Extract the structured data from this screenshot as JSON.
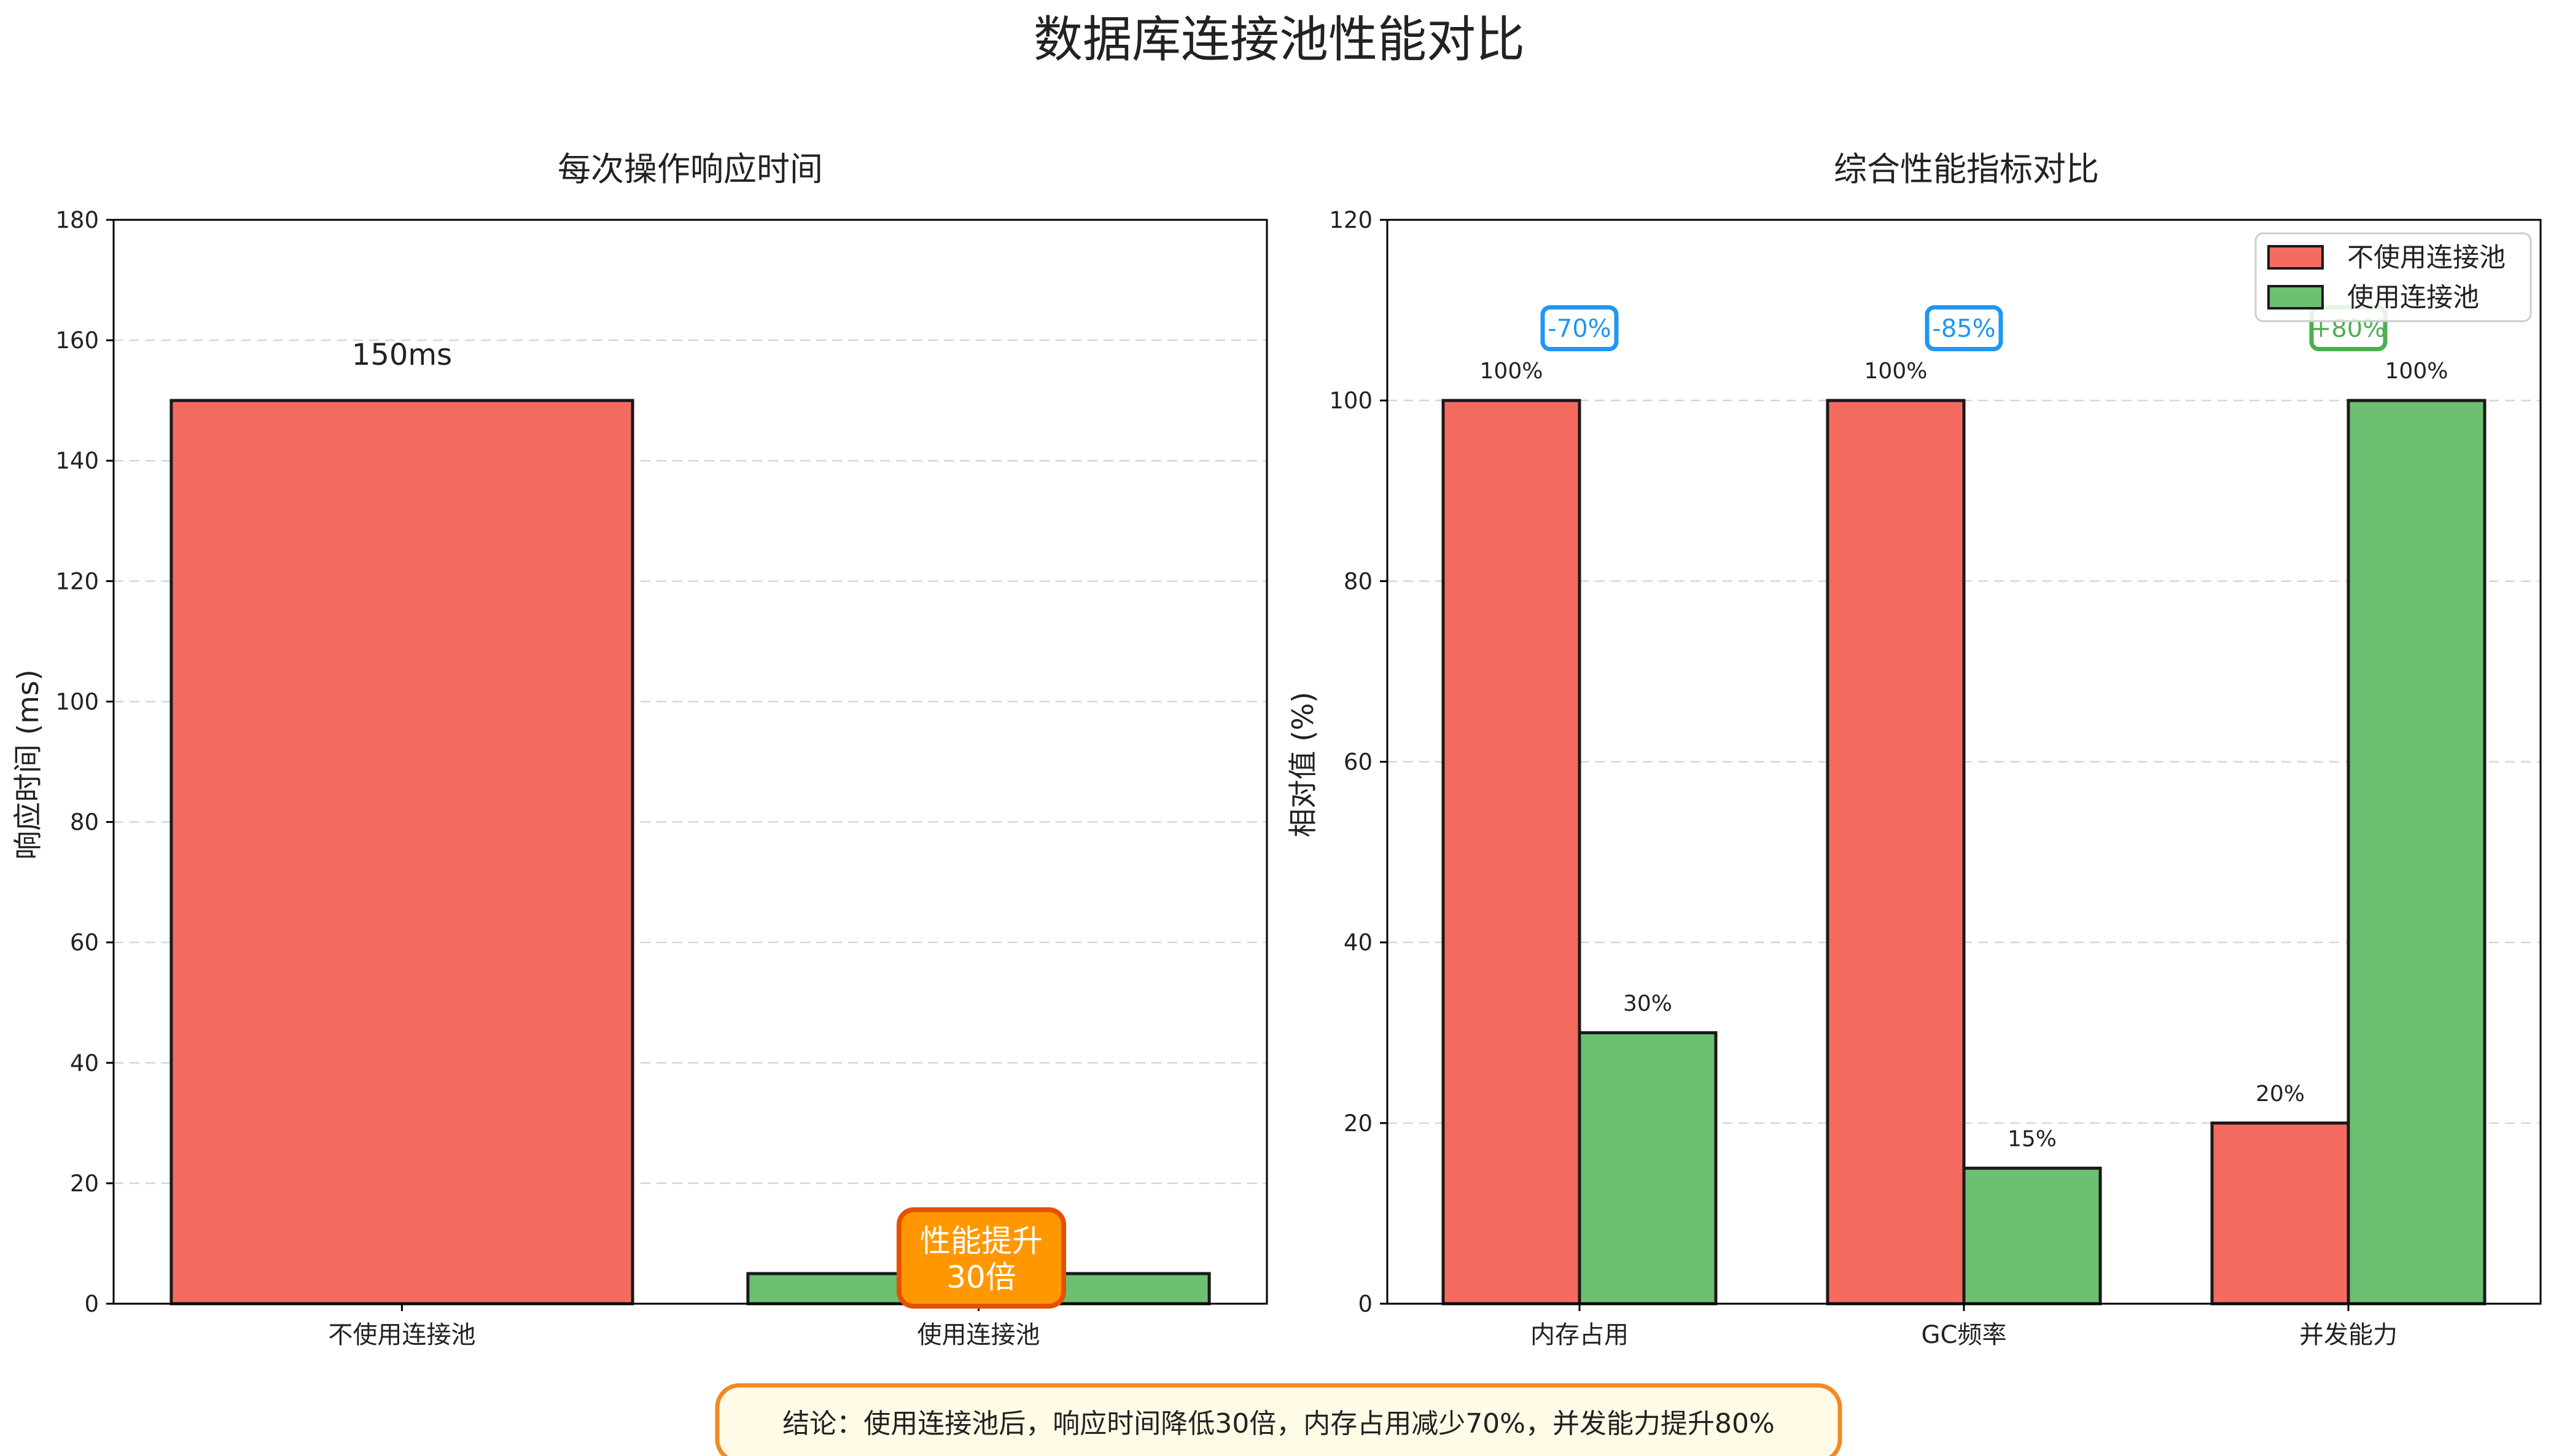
{
  "title": "数据库连接池性能对比",
  "colors": {
    "without_pool": "#f46b5f",
    "with_pool": "#6dbf71",
    "badge_blue": "#2196f3",
    "badge_green": "#4caf50",
    "highlight_fill": "#ff9800",
    "highlight_border": "#e65100",
    "conclusion_border": "#f08a24",
    "conclusion_fill": "#fffbe6"
  },
  "chart_data": [
    {
      "type": "bar",
      "title": "每次操作响应时间",
      "xlabel": "",
      "ylabel": "响应时间 (ms)",
      "categories": [
        "不使用连接池",
        "使用连接池"
      ],
      "values": [
        150,
        5
      ],
      "value_labels": [
        "150ms",
        ""
      ],
      "ylim": [
        0,
        180
      ],
      "yticks": [
        0,
        20,
        40,
        60,
        80,
        100,
        120,
        140,
        160,
        180
      ],
      "grid": true,
      "annotation": {
        "line1": "性能提升",
        "line2": "30倍"
      }
    },
    {
      "type": "bar",
      "title": "综合性能指标对比",
      "xlabel": "",
      "ylabel": "相对值 (%)",
      "categories": [
        "内存占用",
        "GC频率",
        "并发能力"
      ],
      "series": [
        {
          "name": "不使用连接池",
          "values": [
            100,
            100,
            20
          ],
          "labels": [
            "100%",
            "100%",
            "20%"
          ]
        },
        {
          "name": "使用连接池",
          "values": [
            30,
            15,
            100
          ],
          "labels": [
            "30%",
            "15%",
            "100%"
          ]
        }
      ],
      "ylim": [
        0,
        120
      ],
      "yticks": [
        0,
        20,
        40,
        60,
        80,
        100,
        120
      ],
      "grid": true,
      "legend": "top-right",
      "change_badges": [
        "-70%",
        "-85%",
        "+80%"
      ]
    }
  ],
  "conclusion": "结论：使用连接池后，响应时间降低30倍，内存占用减少70%，并发能力提升80%"
}
